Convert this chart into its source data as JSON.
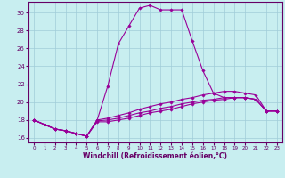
{
  "xlabel": "Windchill (Refroidissement éolien,°C)",
  "xlim": [
    -0.5,
    23.5
  ],
  "ylim": [
    15.5,
    31.2
  ],
  "xticks": [
    0,
    1,
    2,
    3,
    4,
    5,
    6,
    7,
    8,
    9,
    10,
    11,
    12,
    13,
    14,
    15,
    16,
    17,
    18,
    19,
    20,
    21,
    22,
    23
  ],
  "yticks": [
    16,
    18,
    20,
    22,
    24,
    26,
    28,
    30
  ],
  "bg_color": "#c8eef0",
  "grid_color": "#a0ccd8",
  "line_color": "#990099",
  "line1_x": [
    0,
    1,
    2,
    3,
    4,
    5,
    6,
    7,
    8,
    9,
    10,
    11,
    12,
    13,
    14,
    15,
    16,
    17,
    18,
    19,
    20,
    21,
    22,
    23
  ],
  "line1_y": [
    18.0,
    17.5,
    17.0,
    16.8,
    16.5,
    16.2,
    18.0,
    21.8,
    26.5,
    28.5,
    30.5,
    30.8,
    30.3,
    30.3,
    30.3,
    26.8,
    23.5,
    21.0,
    20.5,
    20.5,
    20.5,
    20.3,
    19.0,
    19.0
  ],
  "line2_x": [
    0,
    1,
    2,
    3,
    4,
    5,
    6,
    7,
    8,
    9,
    10,
    11,
    12,
    13,
    14,
    15,
    16,
    17,
    18,
    19,
    20,
    21,
    22,
    23
  ],
  "line2_y": [
    18.0,
    17.5,
    17.0,
    16.8,
    16.5,
    16.2,
    18.0,
    18.2,
    18.5,
    18.8,
    19.2,
    19.5,
    19.8,
    20.0,
    20.3,
    20.5,
    20.8,
    21.0,
    21.2,
    21.2,
    21.0,
    20.8,
    19.0,
    19.0
  ],
  "line3_x": [
    0,
    1,
    2,
    3,
    4,
    5,
    6,
    7,
    8,
    9,
    10,
    11,
    12,
    13,
    14,
    15,
    16,
    17,
    18,
    19,
    20,
    21,
    22,
    23
  ],
  "line3_y": [
    18.0,
    17.5,
    17.0,
    16.8,
    16.5,
    16.2,
    17.9,
    18.0,
    18.2,
    18.5,
    18.8,
    19.0,
    19.3,
    19.5,
    19.8,
    20.0,
    20.2,
    20.3,
    20.5,
    20.5,
    20.5,
    20.3,
    19.0,
    19.0
  ],
  "line4_x": [
    0,
    1,
    2,
    3,
    4,
    5,
    6,
    7,
    8,
    9,
    10,
    11,
    12,
    13,
    14,
    15,
    16,
    17,
    18,
    19,
    20,
    21,
    22,
    23
  ],
  "line4_y": [
    18.0,
    17.5,
    17.0,
    16.8,
    16.5,
    16.2,
    17.8,
    17.8,
    18.0,
    18.2,
    18.5,
    18.8,
    19.0,
    19.2,
    19.5,
    19.8,
    20.0,
    20.2,
    20.3,
    20.5,
    20.5,
    20.3,
    19.0,
    19.0
  ]
}
